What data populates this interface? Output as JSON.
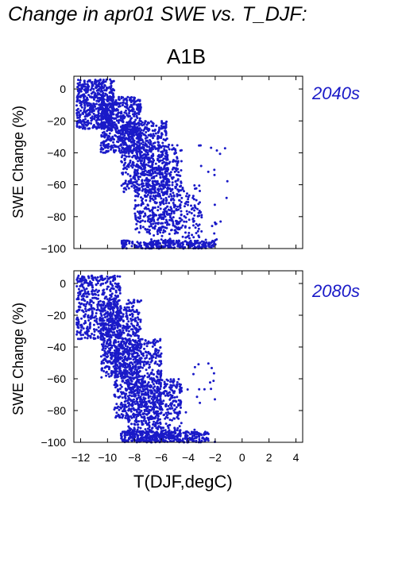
{
  "figure": {
    "title": "Change in apr01 SWE vs. T_DJF:",
    "scenario": "A1B",
    "xlabel": "T(DJF,degC)",
    "point_color": "#1a1ac8"
  },
  "chart_data": [
    {
      "type": "scatter",
      "period_label": "2040s",
      "ylabel": "SWE Change (%)",
      "xlabel": "",
      "xlim": [
        -12.5,
        4.5
      ],
      "ylim": [
        -100,
        8
      ],
      "xticks": [
        -12,
        -10,
        -8,
        -6,
        -4,
        -2,
        0,
        2,
        4
      ],
      "yticks": [
        0,
        -20,
        -40,
        -60,
        -80,
        -100
      ],
      "grid": false,
      "series": [
        {
          "cloud": [
            {
              "x_range": [
                -12.3,
                -9.5
              ],
              "y_range": [
                -25,
                6
              ],
              "n": 520
            },
            {
              "x_range": [
                -10.5,
                -7.5
              ],
              "y_range": [
                -40,
                -5
              ],
              "n": 600
            },
            {
              "x_range": [
                -9.0,
                -5.5
              ],
              "y_range": [
                -65,
                -20
              ],
              "n": 560
            },
            {
              "x_range": [
                -8.0,
                -4.5
              ],
              "y_range": [
                -90,
                -35
              ],
              "n": 440
            },
            {
              "x_range": [
                -7.0,
                -3.0
              ],
              "y_range": [
                -100,
                -60
              ],
              "n": 260
            },
            {
              "x_range": [
                -9.0,
                -2.0
              ],
              "y_range": [
                -100,
                -95
              ],
              "n": 220
            },
            {
              "x_range": [
                -3.5,
                -1.0
              ],
              "y_range": [
                -100,
                -30
              ],
              "n": 25
            }
          ]
        }
      ]
    },
    {
      "type": "scatter",
      "period_label": "2080s",
      "ylabel": "SWE Change (%)",
      "xlabel": "T(DJF,degC)",
      "xlim": [
        -12.5,
        4.5
      ],
      "ylim": [
        -100,
        8
      ],
      "xticks": [
        -12,
        -10,
        -8,
        -6,
        -4,
        -2,
        0,
        2,
        4
      ],
      "yticks": [
        0,
        -20,
        -40,
        -60,
        -80,
        -100
      ],
      "grid": false,
      "series": [
        {
          "cloud": [
            {
              "x_range": [
                -12.3,
                -9.0
              ],
              "y_range": [
                -35,
                5
              ],
              "n": 500
            },
            {
              "x_range": [
                -10.5,
                -7.5
              ],
              "y_range": [
                -60,
                -10
              ],
              "n": 600
            },
            {
              "x_range": [
                -9.5,
                -6.0
              ],
              "y_range": [
                -85,
                -35
              ],
              "n": 600
            },
            {
              "x_range": [
                -8.5,
                -4.5
              ],
              "y_range": [
                -100,
                -60
              ],
              "n": 520
            },
            {
              "x_range": [
                -9.0,
                -2.5
              ],
              "y_range": [
                -100,
                -93
              ],
              "n": 330
            },
            {
              "x_range": [
                -5.0,
                -2.0
              ],
              "y_range": [
                -100,
                -50
              ],
              "n": 30
            }
          ]
        }
      ]
    }
  ]
}
